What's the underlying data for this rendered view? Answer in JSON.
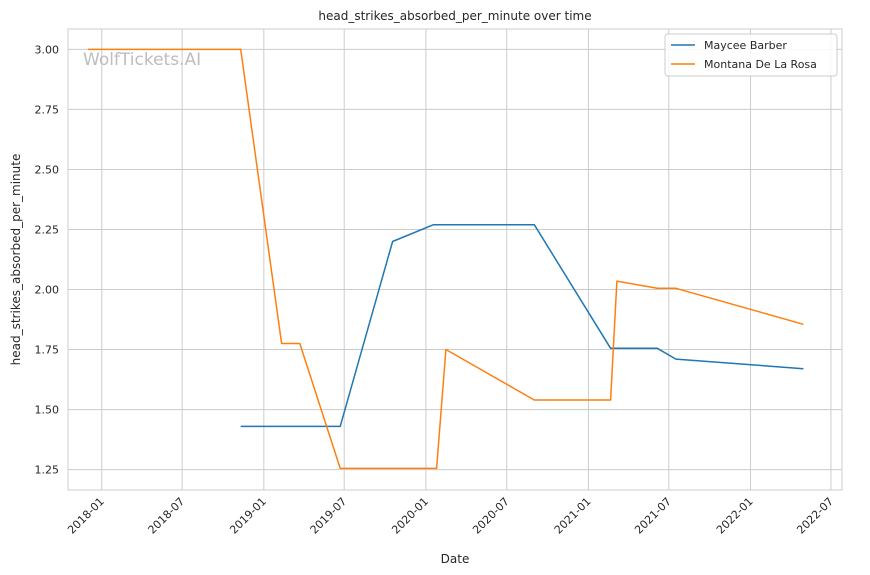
{
  "chart_data": {
    "type": "line",
    "title": "head_strikes_absorbed_per_minute over time",
    "xlabel": "Date",
    "ylabel": "head_strikes_absorbed_per_minute",
    "watermark": "WolfTickets.AI",
    "x_ticks": [
      "2018-01",
      "2018-07",
      "2019-01",
      "2019-07",
      "2020-01",
      "2020-07",
      "2021-01",
      "2021-07",
      "2022-01",
      "2022-07"
    ],
    "y_ticks": [
      "1.25",
      "1.50",
      "1.75",
      "2.00",
      "2.25",
      "2.50",
      "2.75",
      "3.00"
    ],
    "xlim": [
      "2017-10-17",
      "2022-07-26"
    ],
    "ylim": [
      1.165,
      3.085
    ],
    "grid": true,
    "legend_position": "top-right",
    "series": [
      {
        "name": "Maycee Barber",
        "color": "#1f77b4",
        "points": [
          {
            "x": "2018-11-10",
            "y": 1.43
          },
          {
            "x": "2019-06-22",
            "y": 1.43
          },
          {
            "x": "2019-10-18",
            "y": 2.2
          },
          {
            "x": "2020-01-18",
            "y": 2.27
          },
          {
            "x": "2020-09-01",
            "y": 2.27
          },
          {
            "x": "2021-02-20",
            "y": 1.755
          },
          {
            "x": "2021-06-05",
            "y": 1.755
          },
          {
            "x": "2021-07-17",
            "y": 1.71
          },
          {
            "x": "2022-04-30",
            "y": 1.67
          }
        ]
      },
      {
        "name": "Montana De La Rosa",
        "color": "#ff7f0e",
        "points": [
          {
            "x": "2017-12-01",
            "y": 3.0
          },
          {
            "x": "2018-11-10",
            "y": 3.0
          },
          {
            "x": "2019-02-10",
            "y": 1.775
          },
          {
            "x": "2019-03-23",
            "y": 1.775
          },
          {
            "x": "2019-06-22",
            "y": 1.255
          },
          {
            "x": "2020-01-25",
            "y": 1.255
          },
          {
            "x": "2020-02-15",
            "y": 1.75
          },
          {
            "x": "2020-09-01",
            "y": 1.54
          },
          {
            "x": "2021-02-20",
            "y": 1.54
          },
          {
            "x": "2021-03-06",
            "y": 2.035
          },
          {
            "x": "2021-06-05",
            "y": 2.005
          },
          {
            "x": "2021-07-17",
            "y": 2.005
          },
          {
            "x": "2022-04-30",
            "y": 1.855
          }
        ]
      }
    ]
  }
}
